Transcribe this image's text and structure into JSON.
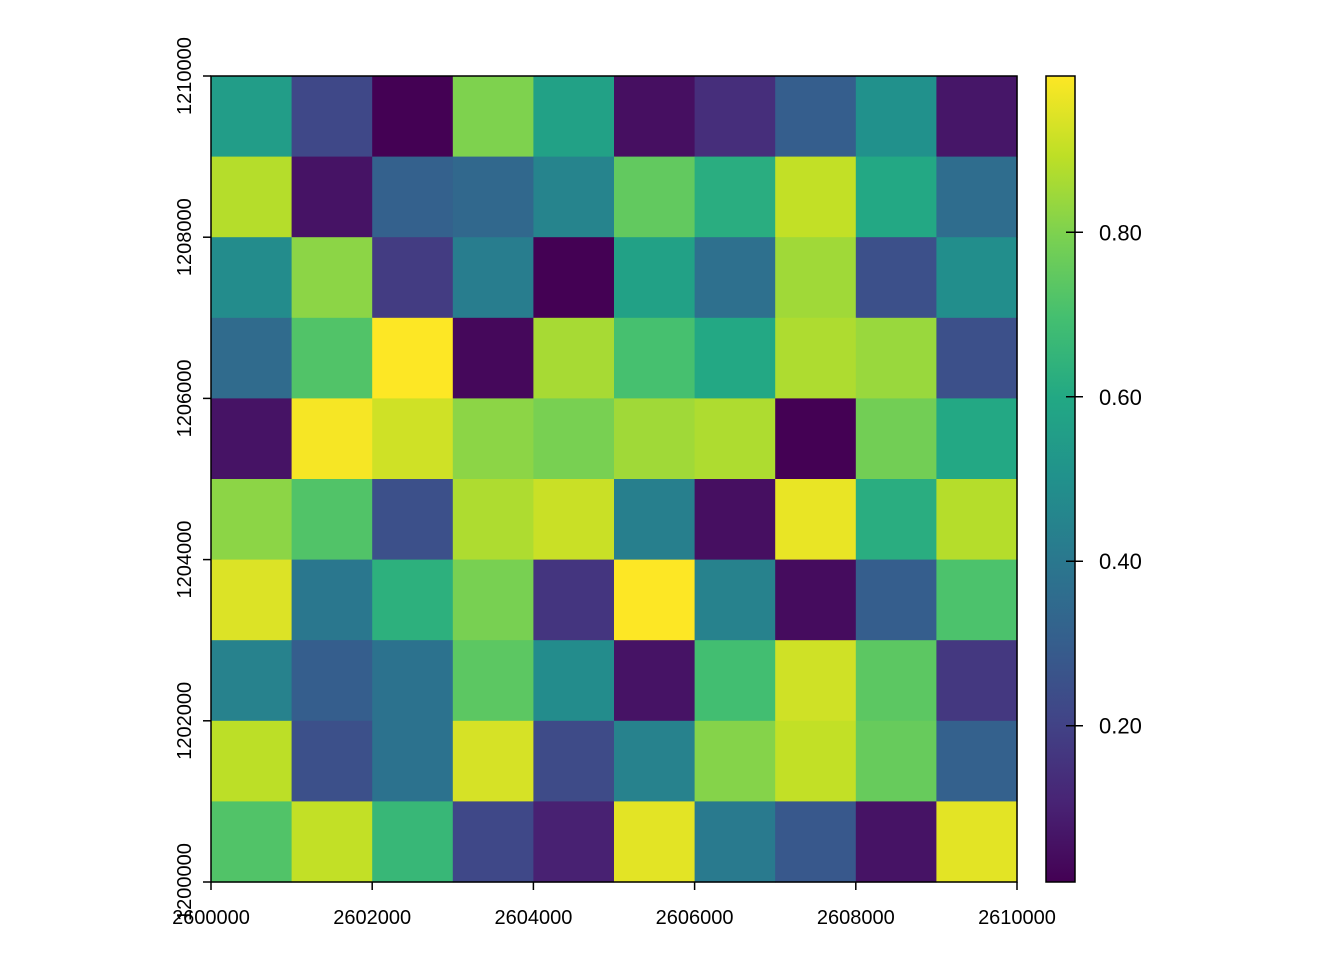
{
  "chart_data": {
    "type": "heatmap",
    "title": "",
    "xlabel": "",
    "ylabel": "",
    "xlim": [
      2600000,
      2610000
    ],
    "ylim": [
      1200000,
      1210000
    ],
    "grid": false,
    "x_ticks": [
      2600000,
      2602000,
      2604000,
      2606000,
      2608000,
      2610000
    ],
    "x_tick_labels": [
      "2600000",
      "2602000",
      "2604000",
      "2606000",
      "2608000",
      "2610000"
    ],
    "y_ticks": [
      1200000,
      1202000,
      1204000,
      1206000,
      1208000,
      1210000
    ],
    "y_tick_labels": [
      "1200000",
      "1202000",
      "1204000",
      "1206000",
      "1208000",
      "1210000"
    ],
    "cell_size": 1000,
    "rows_top_to_bottom": [
      [
        0.55,
        0.22,
        0.01,
        0.8,
        0.57,
        0.05,
        0.14,
        0.3,
        0.5,
        0.07
      ],
      [
        0.88,
        0.06,
        0.31,
        0.34,
        0.45,
        0.75,
        0.62,
        0.9,
        0.6,
        0.36
      ],
      [
        0.48,
        0.82,
        0.18,
        0.42,
        0.01,
        0.57,
        0.37,
        0.85,
        0.25,
        0.49
      ],
      [
        0.35,
        0.72,
        0.99,
        0.03,
        0.86,
        0.7,
        0.6,
        0.87,
        0.84,
        0.25
      ],
      [
        0.06,
        0.98,
        0.92,
        0.82,
        0.79,
        0.85,
        0.87,
        0.01,
        0.78,
        0.6
      ],
      [
        0.82,
        0.72,
        0.25,
        0.87,
        0.91,
        0.43,
        0.05,
        0.96,
        0.62,
        0.88
      ],
      [
        0.94,
        0.4,
        0.63,
        0.79,
        0.16,
        0.99,
        0.44,
        0.04,
        0.3,
        0.71
      ],
      [
        0.44,
        0.3,
        0.38,
        0.74,
        0.48,
        0.06,
        0.69,
        0.92,
        0.74,
        0.17
      ],
      [
        0.89,
        0.25,
        0.38,
        0.93,
        0.23,
        0.44,
        0.81,
        0.9,
        0.76,
        0.31
      ],
      [
        0.72,
        0.9,
        0.66,
        0.22,
        0.1,
        0.95,
        0.41,
        0.28,
        0.06,
        0.95
      ]
    ],
    "colorscale": "viridis",
    "value_range": [
      0.01,
      0.99
    ],
    "colorbar": {
      "ticks": [
        0.2,
        0.4,
        0.6,
        0.8
      ],
      "tick_labels": [
        "0.20",
        "0.40",
        "0.60",
        "0.80"
      ],
      "position": "right"
    }
  }
}
